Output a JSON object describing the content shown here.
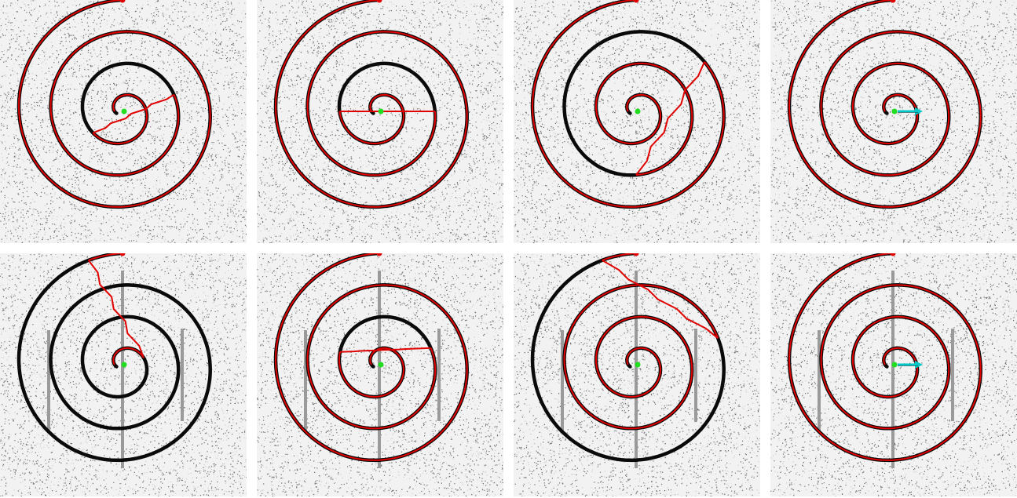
{
  "figure": {
    "rows": 2,
    "cols": 4,
    "colors": {
      "background": "#ffffff",
      "noise": "#000000",
      "spiral": "#0a0a0a",
      "path": "#e00000",
      "start_marker": "#e00000",
      "goal_marker": "#22dd22",
      "barrier": "#9a9a9a",
      "arrow": "#00c8c8"
    }
  },
  "spiral": {
    "turns": 3.3,
    "direction": "clockwise-outward"
  },
  "panels": [
    {
      "name": "panel-r1-c1",
      "barriers": false,
      "path_turns": 1.35,
      "shortcut": [
        0.95,
        1.5
      ],
      "arrows": false
    },
    {
      "name": "panel-r1-c2",
      "barriers": false,
      "path_turns": 1.6,
      "shortcut": [
        1.05,
        1.55
      ],
      "arrows": false
    },
    {
      "name": "panel-r1-c3",
      "barriers": false,
      "path_turns": 2.4,
      "shortcut": [
        1.8,
        2.45
      ],
      "arrows": false
    },
    {
      "name": "panel-r1-c4",
      "barriers": false,
      "path_turns": 3.3,
      "shortcut": null,
      "arrows": true
    },
    {
      "name": "panel-r2-c1",
      "barriers": true,
      "path_turns": 0.55,
      "shortcut": [
        0.5,
        3.25
      ],
      "arrows": false
    },
    {
      "name": "panel-r2-c2",
      "barriers": true,
      "path_turns": 1.6,
      "shortcut": [
        1.1,
        1.5
      ],
      "arrows": false
    },
    {
      "name": "panel-r2-c3",
      "barriers": true,
      "path_turns": 2.55,
      "shortcut": [
        2.5,
        3.25
      ],
      "arrows": false
    },
    {
      "name": "panel-r2-c4",
      "barriers": true,
      "path_turns": 3.3,
      "shortcut": null,
      "arrows": true
    }
  ]
}
